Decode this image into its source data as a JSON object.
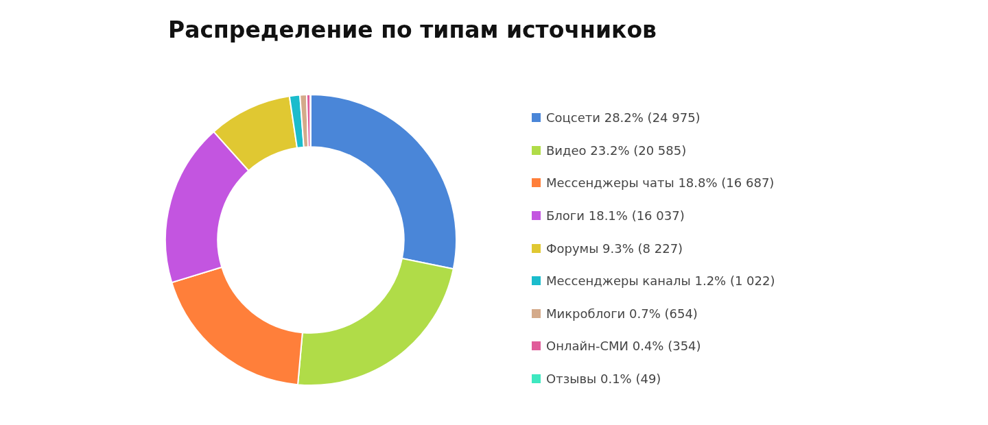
{
  "chart_data": {
    "type": "donut",
    "title": "Распределение по типам источников",
    "categories": [
      "Соцсети",
      "Видео",
      "Мессенджеры чаты",
      "Блоги",
      "Форумы",
      "Мессенджеры каналы",
      "Микроблоги",
      "Онлайн-СМИ",
      "Отзывы"
    ],
    "values": [
      24975,
      20585,
      16687,
      16037,
      8227,
      1022,
      654,
      354,
      49
    ],
    "value_labels": [
      "28.2% (24 975)",
      "23.2% (20 585)",
      "18.8% (16 687)",
      "18.1% (16 037)",
      "9.3% (8 227)",
      "1.2% (1 022)",
      "0.7% (654)",
      "0.4% (354)",
      "0.1% (49)"
    ],
    "colors": [
      "#4a86d8",
      "#b0dc48",
      "#ff7f3a",
      "#c355e0",
      "#e0c832",
      "#1bbccc",
      "#d4aa8a",
      "#e05c9a",
      "#3ee8c0"
    ],
    "legend": "right"
  }
}
